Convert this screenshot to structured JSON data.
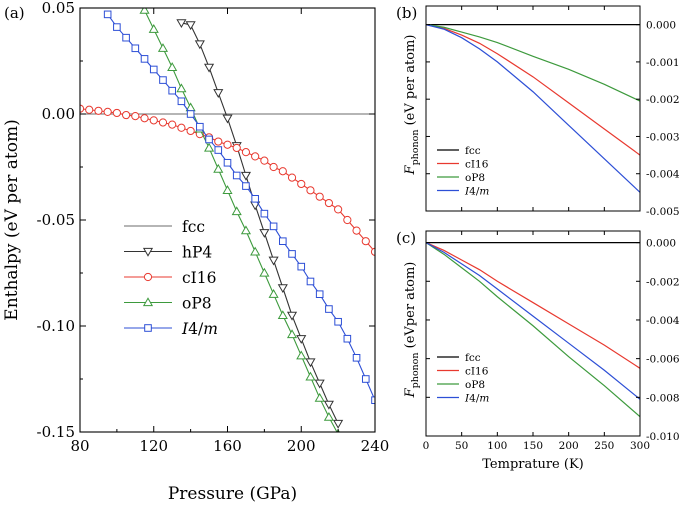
{
  "chart_data": [
    {
      "panel": "(a)",
      "type": "line",
      "xlabel": "Pressure (GPa)",
      "ylabel": "Enthalpy (eV per atom)",
      "xlim": [
        80,
        240
      ],
      "ylim": [
        -0.15,
        0.05
      ],
      "xticks": [
        "80",
        "120",
        "160",
        "200",
        "240"
      ],
      "yticks": [
        "0.05",
        "0.00",
        "-0.05",
        "-0.10",
        "-0.15"
      ],
      "legend_position": "bottom-left",
      "series": [
        {
          "name": "fcc",
          "color": "#6b6b6b",
          "marker": "none",
          "x": [
            80,
            240
          ],
          "y": [
            0.0,
            0.0
          ]
        },
        {
          "name": "hP4",
          "color": "#333333",
          "marker": "triangle-down",
          "x": [
            135,
            140,
            145,
            150,
            155,
            160,
            165,
            170,
            175,
            180,
            185,
            190,
            195,
            200,
            205,
            210,
            215,
            220
          ],
          "y": [
            0.043,
            0.042,
            0.033,
            0.022,
            0.01,
            -0.002,
            -0.015,
            -0.029,
            -0.043,
            -0.056,
            -0.069,
            -0.082,
            -0.095,
            -0.106,
            -0.117,
            -0.127,
            -0.137,
            -0.146
          ]
        },
        {
          "name": "cI16",
          "color": "#e8392f",
          "marker": "circle",
          "x": [
            80,
            85,
            90,
            95,
            100,
            105,
            110,
            115,
            120,
            125,
            130,
            135,
            140,
            145,
            150,
            155,
            160,
            165,
            170,
            175,
            180,
            185,
            190,
            195,
            200,
            205,
            210,
            215,
            220,
            225,
            230,
            235,
            240
          ],
          "y": [
            0.0025,
            0.002,
            0.0015,
            0.001,
            0.0005,
            -0.0005,
            -0.001,
            -0.002,
            -0.003,
            -0.004,
            -0.005,
            -0.0065,
            -0.008,
            -0.0095,
            -0.011,
            -0.013,
            -0.0145,
            -0.016,
            -0.018,
            -0.02,
            -0.022,
            -0.025,
            -0.027,
            -0.03,
            -0.033,
            -0.036,
            -0.039,
            -0.042,
            -0.045,
            -0.05,
            -0.055,
            -0.06,
            -0.065
          ]
        },
        {
          "name": "oP8",
          "color": "#3d9a3d",
          "marker": "triangle-up",
          "x": [
            115,
            120,
            125,
            130,
            135,
            140,
            145,
            150,
            155,
            160,
            165,
            170,
            175,
            180,
            185,
            190,
            195,
            200,
            205,
            210,
            215,
            220
          ],
          "y": [
            0.049,
            0.04,
            0.031,
            0.022,
            0.012,
            0.003,
            -0.007,
            -0.016,
            -0.026,
            -0.036,
            -0.046,
            -0.055,
            -0.065,
            -0.075,
            -0.085,
            -0.095,
            -0.104,
            -0.114,
            -0.124,
            -0.134,
            -0.143,
            -0.151
          ]
        },
        {
          "name": "I4/m",
          "color": "#2d4fd6",
          "marker": "square",
          "x": [
            95,
            100,
            105,
            110,
            115,
            120,
            125,
            130,
            135,
            140,
            145,
            150,
            155,
            160,
            165,
            170,
            175,
            180,
            185,
            190,
            195,
            200,
            205,
            210,
            215,
            220,
            225,
            230,
            235,
            240
          ],
          "y": [
            0.047,
            0.041,
            0.036,
            0.031,
            0.026,
            0.021,
            0.016,
            0.011,
            0.006,
            0.0,
            -0.006,
            -0.012,
            -0.017,
            -0.023,
            -0.029,
            -0.034,
            -0.04,
            -0.047,
            -0.053,
            -0.06,
            -0.066,
            -0.072,
            -0.079,
            -0.085,
            -0.092,
            -0.098,
            -0.106,
            -0.115,
            -0.125,
            -0.135
          ]
        }
      ]
    },
    {
      "panel": "(b)",
      "type": "line",
      "ylabel_main": "F",
      "ylabel_sub": "phonon",
      "ylabel_rest": " (eV per atom)",
      "xlim": [
        0,
        300
      ],
      "ylim": [
        -0.005,
        0.0005
      ],
      "yticks": [
        "0.000",
        "-0.001",
        "-0.002",
        "-0.003",
        "-0.004",
        "-0.005"
      ],
      "legend_position": "bottom-left",
      "series": [
        {
          "name": "fcc",
          "color": "#000000",
          "x": [
            0,
            300
          ],
          "y": [
            0,
            0
          ]
        },
        {
          "name": "cI16",
          "color": "#e8392f",
          "x": [
            0,
            25,
            50,
            75,
            100,
            150,
            200,
            250,
            300
          ],
          "y": [
            0,
            -0.0001,
            -0.00028,
            -0.0005,
            -0.00078,
            -0.0014,
            -0.0021,
            -0.0028,
            -0.0035
          ]
        },
        {
          "name": "oP8",
          "color": "#3d9a3d",
          "x": [
            0,
            25,
            50,
            75,
            100,
            150,
            200,
            250,
            300
          ],
          "y": [
            0,
            -7e-05,
            -0.0002,
            -0.00033,
            -0.00048,
            -0.00085,
            -0.0012,
            -0.0016,
            -0.00205
          ]
        },
        {
          "name": "I4/m",
          "color": "#2d4fd6",
          "x": [
            0,
            25,
            50,
            75,
            100,
            150,
            200,
            250,
            300
          ],
          "y": [
            0,
            -0.00012,
            -0.00035,
            -0.00065,
            -0.001,
            -0.0018,
            -0.0027,
            -0.0036,
            -0.0045
          ]
        }
      ]
    },
    {
      "panel": "(c)",
      "type": "line",
      "xlabel": "Temprature (K)",
      "ylabel_main": "F",
      "ylabel_sub": "phonon",
      "ylabel_rest": " (eVper atom)",
      "xlim": [
        0,
        300
      ],
      "ylim": [
        -0.01,
        0.0006
      ],
      "xticks": [
        "0",
        "50",
        "100",
        "150",
        "200",
        "250",
        "300"
      ],
      "yticks": [
        "0.000",
        "-0.002",
        "-0.004",
        "-0.006",
        "-0.008",
        "-0.010"
      ],
      "legend_position": "bottom-left",
      "series": [
        {
          "name": "fcc",
          "color": "#000000",
          "x": [
            0,
            300
          ],
          "y": [
            0,
            0
          ]
        },
        {
          "name": "cI16",
          "color": "#e8392f",
          "x": [
            0,
            25,
            50,
            75,
            100,
            150,
            200,
            250,
            300
          ],
          "y": [
            0,
            -0.0004,
            -0.0009,
            -0.0014,
            -0.002,
            -0.0031,
            -0.0042,
            -0.0053,
            -0.0065
          ]
        },
        {
          "name": "oP8",
          "color": "#3d9a3d",
          "x": [
            0,
            25,
            50,
            75,
            100,
            150,
            200,
            250,
            300
          ],
          "y": [
            0,
            -0.0006,
            -0.0013,
            -0.002,
            -0.0028,
            -0.0043,
            -0.0059,
            -0.0074,
            -0.009
          ]
        },
        {
          "name": "I4/m",
          "color": "#2d4fd6",
          "x": [
            0,
            25,
            50,
            75,
            100,
            150,
            200,
            250,
            300
          ],
          "y": [
            0,
            -0.0005,
            -0.0011,
            -0.0017,
            -0.0024,
            -0.0038,
            -0.0052,
            -0.0066,
            -0.0081
          ]
        }
      ]
    }
  ]
}
